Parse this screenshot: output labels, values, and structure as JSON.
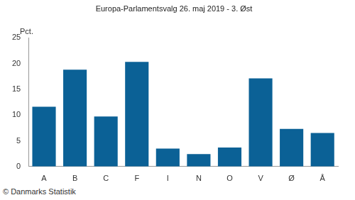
{
  "chart_data": {
    "type": "bar",
    "title": "Europa-Parlamentsvalg 26. maj 2019 - 3. Øst",
    "y_label": "Pct.",
    "source": "© Danmarks Statistik",
    "categories": [
      "A",
      "B",
      "C",
      "F",
      "I",
      "N",
      "O",
      "V",
      "Ø",
      "Å"
    ],
    "values": [
      11.6,
      18.8,
      9.7,
      20.3,
      3.5,
      2.4,
      3.7,
      17.1,
      7.3,
      6.5
    ],
    "color": "#0b6196",
    "ylim": [
      0,
      25
    ],
    "yticks": [
      0,
      5,
      10,
      15,
      20,
      25
    ],
    "grid": false
  }
}
